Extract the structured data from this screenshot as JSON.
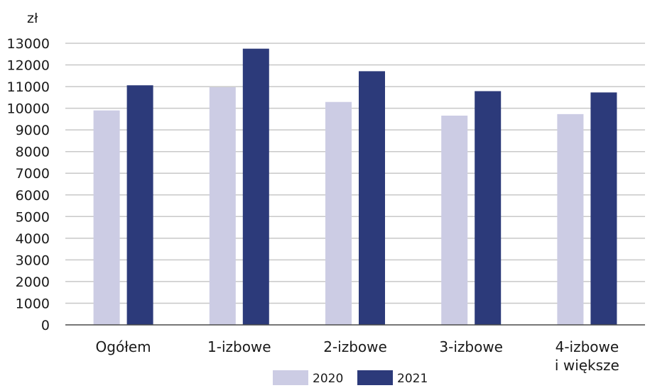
{
  "chart_data": {
    "type": "bar",
    "ylabel": "zł",
    "categories": [
      [
        "Ogółem"
      ],
      [
        "1-izbowe"
      ],
      [
        "2-izbowe"
      ],
      [
        "3-izbowe"
      ],
      [
        "4-izbowe",
        "i większe"
      ]
    ],
    "series": [
      {
        "name": "2020",
        "color": "#cccce4",
        "values": [
          9900,
          10970,
          10290,
          9660,
          9730
        ]
      },
      {
        "name": "2021",
        "color": "#2c3a7a",
        "values": [
          11060,
          12750,
          11710,
          10790,
          10730
        ]
      }
    ],
    "ylim": [
      0,
      13000
    ],
    "yticks": [
      0,
      1000,
      2000,
      3000,
      4000,
      5000,
      6000,
      7000,
      8000,
      9000,
      10000,
      11000,
      12000,
      13000
    ],
    "grid": true,
    "legend": "bottom",
    "colors": {
      "gridline": "#c8c8c8",
      "axis": "#4a4a4a"
    }
  }
}
